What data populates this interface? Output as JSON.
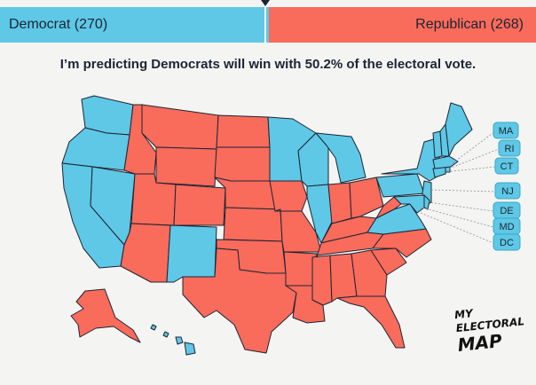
{
  "bar": {
    "democrat_label": "Democrat (270)",
    "republican_label": "Republican (268)",
    "democrat_votes": 270,
    "republican_votes": 268
  },
  "headline": "I’m predicting Democrats will win with 50.2% of the electoral vote.",
  "small_states": [
    "MA",
    "RI",
    "CT",
    "NJ",
    "DE",
    "MD",
    "DC"
  ],
  "logo": {
    "line1": "MY",
    "line2": "ELECTORAL",
    "line3": "MAP"
  },
  "colors": {
    "democrat": "#5ec8e6",
    "republican": "#f96b5b",
    "background": "#f4f4f2",
    "border": "#1d2433"
  }
}
